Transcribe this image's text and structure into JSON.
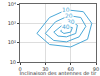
{
  "chart_data": {
    "type": "line",
    "x_label": "Inclinaison des antennes de tir",
    "log": "y",
    "grid": true,
    "color": "#4aa8d8",
    "line_style": "solid",
    "xlim": [
      0,
      90
    ],
    "xticks": [
      0,
      30,
      60,
      90
    ],
    "ylim": [
      10,
      10000
    ],
    "yticks": [
      {
        "value": 10,
        "label": "10"
      },
      {
        "value": 100,
        "label": "10²"
      },
      {
        "value": 1000,
        "label": "10³"
      },
      {
        "value": 10000,
        "label": "10⁴"
      }
    ],
    "series": [
      {
        "x": [
          20,
          35,
          55,
          75,
          85,
          80,
          60,
          35,
          20
        ],
        "values": [
          300,
          2000,
          5000,
          4000,
          1000,
          150,
          60,
          80,
          300
        ]
      },
      {
        "x": [
          30,
          42,
          58,
          72,
          78,
          70,
          55,
          40,
          30
        ],
        "values": [
          300,
          1200,
          2500,
          2000,
          700,
          200,
          110,
          130,
          300
        ]
      },
      {
        "x": [
          40,
          50,
          60,
          68,
          66,
          55,
          45,
          40
        ],
        "values": [
          350,
          800,
          1200,
          800,
          300,
          200,
          220,
          350
        ]
      },
      {
        "x": [
          48,
          55,
          62,
          60,
          52,
          48
        ],
        "values": [
          400,
          700,
          600,
          350,
          300,
          400
        ]
      }
    ],
    "annotations": [
      {
        "text": "10",
        "x": 55,
        "y": 5000
      },
      {
        "text": "20",
        "x": 58,
        "y": 2500
      },
      {
        "text": "30",
        "x": 60,
        "y": 1200
      },
      {
        "text": "40",
        "x": 55,
        "y": 700
      }
    ]
  }
}
